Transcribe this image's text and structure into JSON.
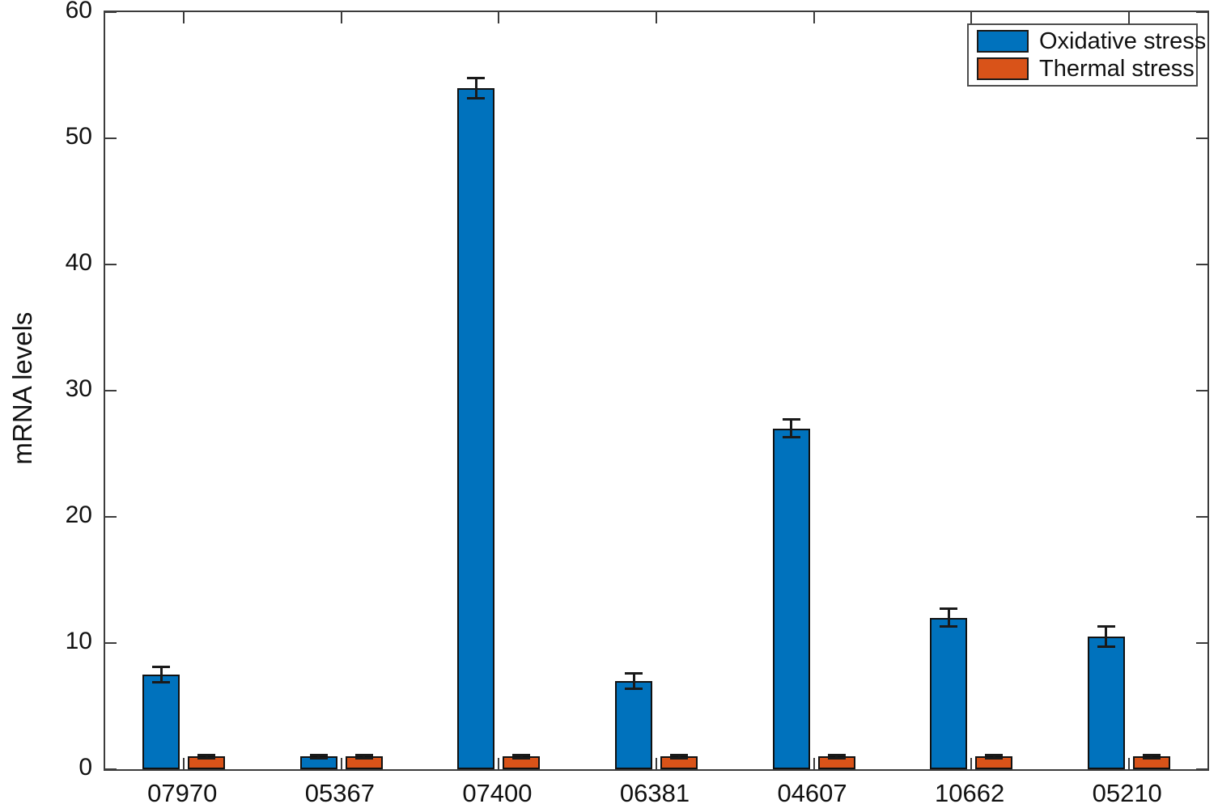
{
  "chart_data": {
    "type": "bar",
    "title": "",
    "xlabel": "",
    "ylabel": "mRNA levels",
    "ylim": [
      0,
      60
    ],
    "yticks": [
      0,
      10,
      20,
      30,
      40,
      50,
      60
    ],
    "grid": false,
    "legend_position": "top-right",
    "categories": [
      "07970",
      "05367",
      "07400",
      "06381",
      "04607",
      "10662",
      "05210"
    ],
    "series": [
      {
        "name": "Oxidative stress",
        "color": "#0072BD",
        "values": [
          7.5,
          1,
          54,
          7,
          27,
          12,
          10.5
        ],
        "errors": [
          0.6,
          0.15,
          0.8,
          0.6,
          0.7,
          0.7,
          0.8
        ]
      },
      {
        "name": "Thermal stress",
        "color": "#D95319",
        "values": [
          1,
          1,
          1,
          1,
          1,
          1,
          1
        ],
        "errors": [
          0.15,
          0.12,
          0.12,
          0.15,
          0.12,
          0.15,
          0.12
        ]
      }
    ],
    "style": {
      "axis_color": "#3c3c3c",
      "bar_edge_color": "#111111",
      "error_bar_color": "#1a1a1a"
    }
  }
}
